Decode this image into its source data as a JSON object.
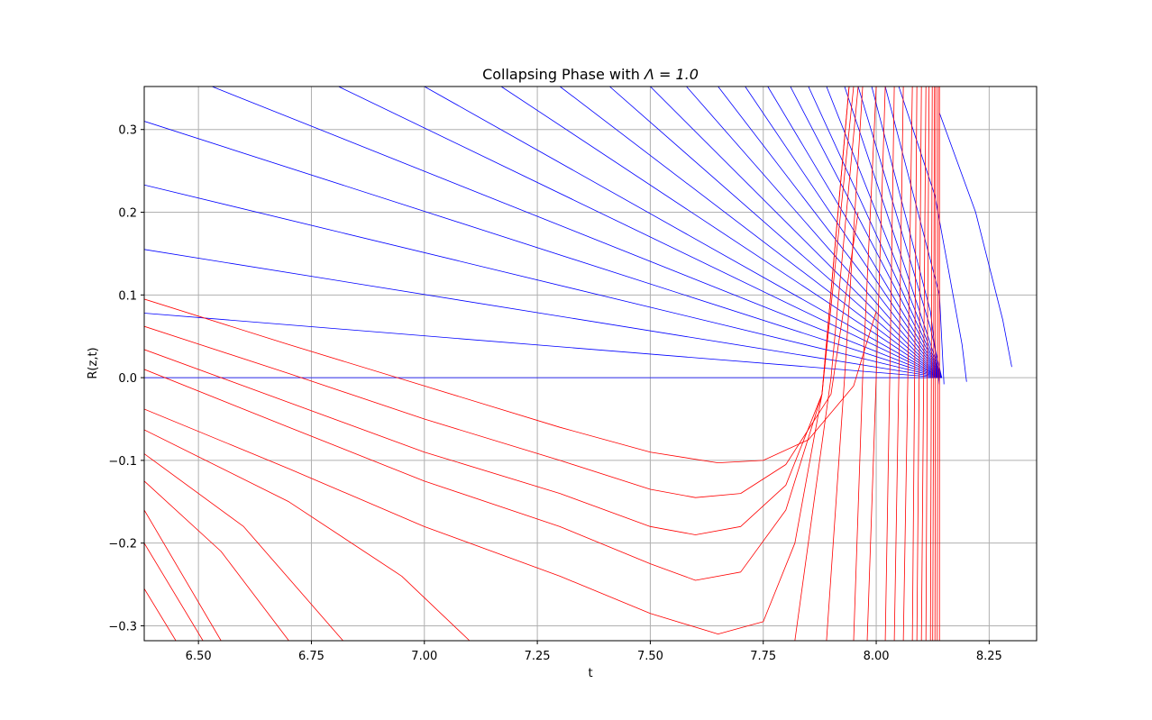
{
  "chart_data": {
    "type": "line",
    "title": "Collapsing Phase with Λ = 1.0",
    "title_prefix": "Collapsing Phase with ",
    "title_math": "Λ = 1.0",
    "xlabel": "t",
    "ylabel": "R(z,t)",
    "xlim": [
      6.38,
      8.355
    ],
    "ylim": [
      -0.318,
      0.352
    ],
    "xticks": [
      6.5,
      6.75,
      7.0,
      7.25,
      7.5,
      7.75,
      8.0,
      8.25
    ],
    "xtick_labels": [
      "6.50",
      "6.75",
      "7.00",
      "7.25",
      "7.50",
      "7.75",
      "8.00",
      "8.25"
    ],
    "yticks": [
      -0.3,
      -0.2,
      -0.1,
      0.0,
      0.1,
      0.2,
      0.3
    ],
    "ytick_labels": [
      "−0.3",
      "−0.2",
      "−0.1",
      "0.0",
      "0.1",
      "0.2",
      "0.3"
    ],
    "grid": true,
    "legend": "none",
    "colors": {
      "family_1": "#0000ff",
      "family_2": "#ff0000",
      "grid": "#b0b0b0"
    },
    "series": [
      {
        "color": "#0000ff",
        "x": [
          6.38,
          8.145
        ],
        "y": [
          0.0,
          0.0
        ]
      },
      {
        "color": "#0000ff",
        "x": [
          6.38,
          8.145
        ],
        "y": [
          0.078,
          0.0
        ]
      },
      {
        "color": "#0000ff",
        "x": [
          6.38,
          8.145
        ],
        "y": [
          0.155,
          0.0
        ]
      },
      {
        "color": "#0000ff",
        "x": [
          6.38,
          8.145
        ],
        "y": [
          0.233,
          0.0
        ]
      },
      {
        "color": "#0000ff",
        "x": [
          6.38,
          8.145
        ],
        "y": [
          0.31,
          0.0
        ]
      },
      {
        "color": "#0000ff",
        "x": [
          6.53,
          8.145
        ],
        "y": [
          0.352,
          0.0
        ]
      },
      {
        "color": "#0000ff",
        "x": [
          6.81,
          8.145
        ],
        "y": [
          0.352,
          0.0
        ]
      },
      {
        "color": "#0000ff",
        "x": [
          7.0,
          8.145
        ],
        "y": [
          0.352,
          0.0
        ]
      },
      {
        "color": "#0000ff",
        "x": [
          7.17,
          8.145
        ],
        "y": [
          0.352,
          0.0
        ]
      },
      {
        "color": "#0000ff",
        "x": [
          7.3,
          8.145
        ],
        "y": [
          0.352,
          0.0
        ]
      },
      {
        "color": "#0000ff",
        "x": [
          7.41,
          8.145
        ],
        "y": [
          0.352,
          0.0
        ]
      },
      {
        "color": "#0000ff",
        "x": [
          7.5,
          8.145
        ],
        "y": [
          0.352,
          0.0
        ]
      },
      {
        "color": "#0000ff",
        "x": [
          7.58,
          8.145
        ],
        "y": [
          0.352,
          0.0
        ]
      },
      {
        "color": "#0000ff",
        "x": [
          7.65,
          8.145
        ],
        "y": [
          0.352,
          0.0
        ]
      },
      {
        "color": "#0000ff",
        "x": [
          7.71,
          8.145
        ],
        "y": [
          0.352,
          0.0
        ]
      },
      {
        "color": "#0000ff",
        "x": [
          7.76,
          8.145
        ],
        "y": [
          0.352,
          0.0
        ]
      },
      {
        "color": "#0000ff",
        "x": [
          7.81,
          8.145
        ],
        "y": [
          0.352,
          0.0
        ]
      },
      {
        "color": "#0000ff",
        "x": [
          7.85,
          8.145
        ],
        "y": [
          0.352,
          0.0
        ]
      },
      {
        "color": "#0000ff",
        "x": [
          7.89,
          8.145
        ],
        "y": [
          0.352,
          0.0
        ]
      },
      {
        "color": "#0000ff",
        "x": [
          7.93,
          8.145
        ],
        "y": [
          0.352,
          0.0
        ]
      },
      {
        "color": "#0000ff",
        "x": [
          7.96,
          8.12,
          8.145
        ],
        "y": [
          0.352,
          0.06,
          0.0
        ]
      },
      {
        "color": "#0000ff",
        "x": [
          7.99,
          8.12,
          8.14
        ],
        "y": [
          0.352,
          0.08,
          -0.008
        ]
      },
      {
        "color": "#0000ff",
        "x": [
          8.02,
          8.14,
          8.15
        ],
        "y": [
          0.352,
          0.1,
          -0.008
        ]
      },
      {
        "color": "#0000ff",
        "x": [
          8.05,
          8.13,
          8.19,
          8.2
        ],
        "y": [
          0.352,
          0.22,
          0.04,
          -0.005
        ]
      },
      {
        "color": "#0000ff",
        "x": [
          8.14,
          8.22,
          8.28,
          8.3
        ],
        "y": [
          0.32,
          0.2,
          0.07,
          0.013
        ]
      },
      {
        "color": "#ff0000",
        "x": [
          6.38,
          6.7,
          7.0,
          7.3,
          7.5,
          7.65,
          7.75,
          7.85,
          7.95,
          8.0
        ],
        "y": [
          0.095,
          0.04,
          -0.01,
          -0.06,
          -0.09,
          -0.103,
          -0.1,
          -0.075,
          -0.01,
          0.08
        ]
      },
      {
        "color": "#ff0000",
        "x": [
          6.38,
          6.7,
          7.0,
          7.3,
          7.5,
          7.6,
          7.7,
          7.8,
          7.9,
          7.96
        ],
        "y": [
          0.062,
          0.005,
          -0.05,
          -0.1,
          -0.135,
          -0.145,
          -0.14,
          -0.105,
          -0.02,
          0.2
        ]
      },
      {
        "color": "#ff0000",
        "x": [
          6.38,
          6.7,
          7.0,
          7.3,
          7.5,
          7.6,
          7.7,
          7.8,
          7.88,
          7.95
        ],
        "y": [
          0.034,
          -0.03,
          -0.09,
          -0.14,
          -0.18,
          -0.19,
          -0.18,
          -0.13,
          -0.02,
          0.352
        ]
      },
      {
        "color": "#ff0000",
        "x": [
          6.38,
          6.7,
          7.0,
          7.3,
          7.5,
          7.6,
          7.7,
          7.8,
          7.88,
          7.94
        ],
        "y": [
          0.01,
          -0.06,
          -0.125,
          -0.18,
          -0.225,
          -0.245,
          -0.235,
          -0.16,
          -0.02,
          0.352
        ]
      },
      {
        "color": "#ff0000",
        "x": [
          6.38,
          6.7,
          7.0,
          7.3,
          7.5,
          7.65,
          7.75,
          7.82,
          7.88,
          7.94
        ],
        "y": [
          -0.038,
          -0.11,
          -0.18,
          -0.24,
          -0.285,
          -0.31,
          -0.295,
          -0.2,
          -0.02,
          0.352
        ]
      },
      {
        "color": "#ff0000",
        "x": [
          6.38,
          6.7,
          6.95,
          7.1
        ],
        "y": [
          -0.063,
          -0.15,
          -0.24,
          -0.318
        ]
      },
      {
        "color": "#ff0000",
        "x": [
          6.38,
          6.6,
          6.82
        ],
        "y": [
          -0.092,
          -0.18,
          -0.318
        ]
      },
      {
        "color": "#ff0000",
        "x": [
          6.38,
          6.55,
          6.7
        ],
        "y": [
          -0.125,
          -0.21,
          -0.318
        ]
      },
      {
        "color": "#ff0000",
        "x": [
          6.38,
          6.55
        ],
        "y": [
          -0.16,
          -0.318
        ]
      },
      {
        "color": "#ff0000",
        "x": [
          6.38,
          6.51
        ],
        "y": [
          -0.2,
          -0.318
        ]
      },
      {
        "color": "#ff0000",
        "x": [
          6.38,
          6.45
        ],
        "y": [
          -0.255,
          -0.318
        ]
      },
      {
        "color": "#ff0000",
        "x": [
          7.82,
          7.9,
          7.96
        ],
        "y": [
          -0.318,
          0.0,
          0.352
        ]
      },
      {
        "color": "#ff0000",
        "x": [
          7.89,
          7.93,
          7.97
        ],
        "y": [
          -0.318,
          0.0,
          0.352
        ]
      },
      {
        "color": "#ff0000",
        "x": [
          7.95,
          7.97,
          8.0
        ],
        "y": [
          -0.318,
          0.0,
          0.352
        ]
      },
      {
        "color": "#ff0000",
        "x": [
          7.98,
          8.0,
          8.02
        ],
        "y": [
          -0.318,
          0.0,
          0.352
        ]
      },
      {
        "color": "#ff0000",
        "x": [
          8.02,
          8.03,
          8.04
        ],
        "y": [
          -0.318,
          0.0,
          0.352
        ]
      },
      {
        "color": "#ff0000",
        "x": [
          8.04,
          8.05,
          8.06
        ],
        "y": [
          -0.318,
          0.0,
          0.352
        ]
      },
      {
        "color": "#ff0000",
        "x": [
          8.06,
          8.07,
          8.08
        ],
        "y": [
          -0.318,
          0.0,
          0.352
        ]
      },
      {
        "color": "#ff0000",
        "x": [
          8.08,
          8.085,
          8.09
        ],
        "y": [
          -0.318,
          0.0,
          0.352
        ]
      },
      {
        "color": "#ff0000",
        "x": [
          8.09,
          8.095,
          8.1
        ],
        "y": [
          -0.318,
          0.0,
          0.352
        ]
      },
      {
        "color": "#ff0000",
        "x": [
          8.1,
          8.105,
          8.11
        ],
        "y": [
          -0.318,
          0.0,
          0.352
        ]
      },
      {
        "color": "#ff0000",
        "x": [
          8.11,
          8.113,
          8.117
        ],
        "y": [
          -0.318,
          0.0,
          0.352
        ]
      },
      {
        "color": "#ff0000",
        "x": [
          8.12,
          8.122,
          8.124
        ],
        "y": [
          -0.318,
          0.0,
          0.352
        ]
      },
      {
        "color": "#ff0000",
        "x": [
          8.125,
          8.127,
          8.129
        ],
        "y": [
          -0.318,
          0.0,
          0.352
        ]
      },
      {
        "color": "#ff0000",
        "x": [
          8.13,
          8.131,
          8.132
        ],
        "y": [
          -0.318,
          0.0,
          0.352
        ]
      },
      {
        "color": "#ff0000",
        "x": [
          8.135,
          8.136,
          8.137
        ],
        "y": [
          -0.318,
          0.0,
          0.352
        ]
      },
      {
        "color": "#ff0000",
        "x": [
          8.14,
          8.14,
          8.14
        ],
        "y": [
          -0.318,
          0.0,
          0.352
        ]
      }
    ]
  }
}
